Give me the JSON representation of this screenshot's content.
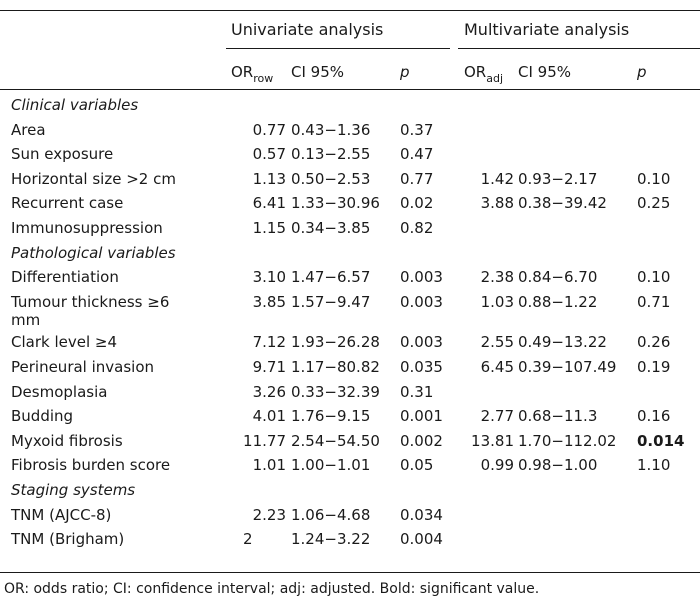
{
  "headers": {
    "univariate": "Univariate analysis",
    "multivariate": "Multivariate analysis",
    "or_row_main": "OR",
    "or_row_sub": "row",
    "or_adj_main": "OR",
    "or_adj_sub": "adj",
    "ci": "CI 95%",
    "p": "p"
  },
  "sections": [
    {
      "title": "Clinical variables",
      "rows": [
        {
          "label": "Area",
          "u_or": "0.77",
          "u_ci": "0.43−1.36",
          "u_p": "0.37",
          "m_or": "",
          "m_ci": "",
          "m_p": ""
        },
        {
          "label": "Sun exposure",
          "u_or": "0.57",
          "u_ci": "0.13−2.55",
          "u_p": "0.47",
          "m_or": "",
          "m_ci": "",
          "m_p": ""
        },
        {
          "label": "Horizontal size >2 cm",
          "u_or": "1.13",
          "u_ci": "0.50−2.53",
          "u_p": "0.77",
          "m_or": "1.42",
          "m_ci": "0.93−2.17",
          "m_p": "0.10"
        },
        {
          "label": "Recurrent case",
          "u_or": "6.41",
          "u_ci": "1.33−30.96",
          "u_p": "0.02",
          "m_or": "3.88",
          "m_ci": "0.38−39.42",
          "m_p": "0.25"
        },
        {
          "label": "Immunosuppression",
          "u_or": "1.15",
          "u_ci": "0.34−3.85",
          "u_p": "0.82",
          "m_or": "",
          "m_ci": "",
          "m_p": ""
        }
      ]
    },
    {
      "title": "Pathological variables",
      "rows": [
        {
          "label": "Differentiation",
          "u_or": "3.10",
          "u_ci": "1.47−6.57",
          "u_p": "0.003",
          "m_or": "2.38",
          "m_ci": "0.84−6.70",
          "m_p": "0.10"
        },
        {
          "label": "Tumour thickness ≥6",
          "label2": "mm",
          "u_or": "3.85",
          "u_ci": "1.57−9.47",
          "u_p": "0.003",
          "m_or": "1.03",
          "m_ci": "0.88−1.22",
          "m_p": "0.71"
        },
        {
          "label": "Clark level ≥4",
          "u_or": "7.12",
          "u_ci": "1.93−26.28",
          "u_p": "0.003",
          "m_or": "2.55",
          "m_ci": "0.49−13.22",
          "m_p": "0.26"
        },
        {
          "label": "Perineural invasion",
          "u_or": "9.71",
          "u_ci": "1.17−80.82",
          "u_p": "0.035",
          "m_or": "6.45",
          "m_ci": "0.39−107.49",
          "m_p": "0.19"
        },
        {
          "label": "Desmoplasia",
          "u_or": "3.26",
          "u_ci": "0.33−32.39",
          "u_p": "0.31",
          "m_or": "",
          "m_ci": "",
          "m_p": ""
        },
        {
          "label": "Budding",
          "u_or": "4.01",
          "u_ci": "1.76−9.15",
          "u_p": "0.001",
          "m_or": "2.77",
          "m_ci": "0.68−11.3",
          "m_p": "0.16"
        },
        {
          "label": "Myxoid fibrosis",
          "u_or": "11.77",
          "u_ci": "2.54−54.50",
          "u_p": "0.002",
          "m_or": "13.81",
          "m_ci": "1.70−112.02",
          "m_p": "0.014",
          "m_p_bold": true
        },
        {
          "label": "Fibrosis burden score",
          "u_or": "1.01",
          "u_ci": "1.00−1.01",
          "u_p": "0.05",
          "m_or": "0.99",
          "m_ci": "0.98−1.00",
          "m_p": "1.10"
        }
      ]
    },
    {
      "title": "Staging systems",
      "rows": [
        {
          "label": "TNM (AJCC-8)",
          "u_or": "2.23",
          "u_ci": "1.06−4.68",
          "u_p": "0.034",
          "m_or": "",
          "m_ci": "",
          "m_p": ""
        },
        {
          "label": "TNM (Brigham)",
          "u_or": "2",
          "u_or_left": true,
          "u_ci": "1.24−3.22",
          "u_p": "0.004",
          "m_or": "",
          "m_ci": "",
          "m_p": ""
        }
      ]
    }
  ],
  "footnote": "OR: odds ratio; CI: confidence interval; adj: adjusted. Bold: significant value."
}
